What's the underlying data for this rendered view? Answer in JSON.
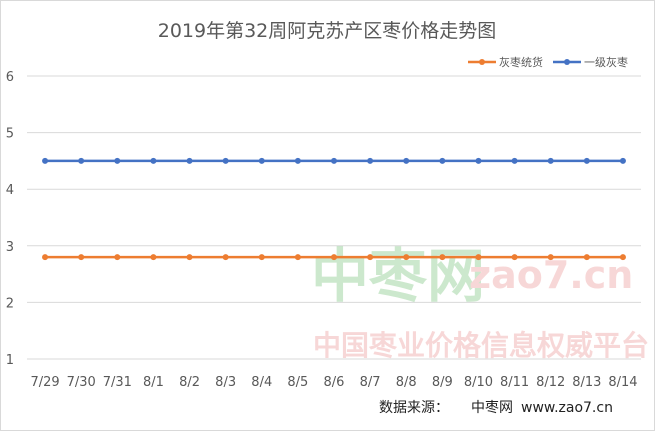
{
  "chart_data": {
    "type": "line",
    "title": "2019年第32周阿克苏产区枣价格走势图",
    "categories": [
      "7/29",
      "7/30",
      "7/31",
      "8/1",
      "8/2",
      "8/3",
      "8/4",
      "8/5",
      "8/6",
      "8/7",
      "8/8",
      "8/9",
      "8/10",
      "8/11",
      "8/12",
      "8/13",
      "8/14"
    ],
    "series": [
      {
        "name": "灰枣统货",
        "color": "#ED7D31",
        "values": [
          2.8,
          2.8,
          2.8,
          2.8,
          2.8,
          2.8,
          2.8,
          2.8,
          2.8,
          2.8,
          2.8,
          2.8,
          2.8,
          2.8,
          2.8,
          2.8,
          2.8
        ]
      },
      {
        "name": "一级灰枣",
        "color": "#4472C4",
        "values": [
          4.5,
          4.5,
          4.5,
          4.5,
          4.5,
          4.5,
          4.5,
          4.5,
          4.5,
          4.5,
          4.5,
          4.5,
          4.5,
          4.5,
          4.5,
          4.5,
          4.5
        ]
      }
    ],
    "ylim": [
      1,
      6
    ],
    "yticks": [
      1,
      2,
      3,
      4,
      5,
      6
    ],
    "grid": true,
    "legend_position": "top-right"
  },
  "source": {
    "label": "数据来源：",
    "name": "中枣网",
    "url": "www.zao7.cn"
  },
  "watermark": {
    "main": "中枣网",
    "domain": "zao7.cn",
    "slogan": "中国枣业价格信息权威平台"
  },
  "colors": {
    "grid": "#d9d9d9",
    "axis_text": "#595959",
    "title": "#595959",
    "watermark": "#4caf50",
    "watermark_domain": "#e57373"
  }
}
